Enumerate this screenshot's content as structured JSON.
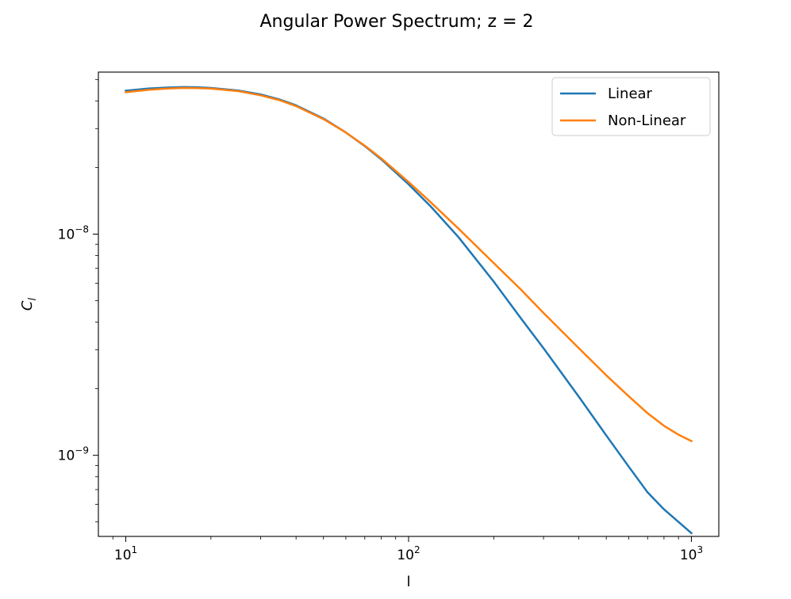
{
  "chart_data": {
    "type": "line",
    "title": "Angular Power Spectrum; z = 2",
    "xlabel": "l",
    "ylabel": "C_l",
    "xscale": "log",
    "yscale": "log",
    "xlim": [
      8,
      1250
    ],
    "ylim": [
      4.3e-10,
      5.4e-08
    ],
    "grid": false,
    "legend_position": "top-right",
    "x_tick_labels": [
      {
        "value": 10,
        "base": "10",
        "exp": "1"
      },
      {
        "value": 100,
        "base": "10",
        "exp": "2"
      },
      {
        "value": 1000,
        "base": "10",
        "exp": "3"
      }
    ],
    "y_tick_labels": [
      {
        "value": 1e-09,
        "base": "10",
        "exp": "−9"
      },
      {
        "value": 1e-08,
        "base": "10",
        "exp": "−8"
      }
    ],
    "series": [
      {
        "name": "Linear",
        "color": "#1f77b4",
        "x": [
          10,
          12,
          14,
          16,
          18,
          20,
          25,
          30,
          35,
          40,
          50,
          60,
          70,
          80,
          100,
          120,
          150,
          200,
          250,
          300,
          400,
          500,
          600,
          700,
          800,
          900,
          1000
        ],
        "y": [
          4.45e-08,
          4.55e-08,
          4.6e-08,
          4.62e-08,
          4.61e-08,
          4.58e-08,
          4.46e-08,
          4.28e-08,
          4.06e-08,
          3.82e-08,
          3.33e-08,
          2.88e-08,
          2.5e-08,
          2.18e-08,
          1.68e-08,
          1.33e-08,
          9.7e-09,
          6.1e-09,
          4.15e-09,
          3.05e-09,
          1.84e-09,
          1.23e-09,
          8.9e-10,
          6.8e-10,
          5.7e-10,
          5e-10,
          4.45e-10
        ]
      },
      {
        "name": "Non-Linear",
        "color": "#ff7f0e",
        "x": [
          10,
          12,
          14,
          16,
          18,
          20,
          25,
          30,
          35,
          40,
          50,
          60,
          70,
          80,
          100,
          120,
          150,
          200,
          250,
          300,
          400,
          500,
          600,
          700,
          800,
          900,
          1000
        ],
        "y": [
          4.38e-08,
          4.49e-08,
          4.55e-08,
          4.58e-08,
          4.57e-08,
          4.55e-08,
          4.43e-08,
          4.24e-08,
          4.03e-08,
          3.79e-08,
          3.31e-08,
          2.88e-08,
          2.51e-08,
          2.2e-08,
          1.72e-08,
          1.39e-08,
          1.06e-08,
          7.4e-09,
          5.6e-09,
          4.4e-09,
          3.05e-09,
          2.3e-09,
          1.85e-09,
          1.55e-09,
          1.36e-09,
          1.24e-09,
          1.16e-09
        ]
      }
    ]
  }
}
